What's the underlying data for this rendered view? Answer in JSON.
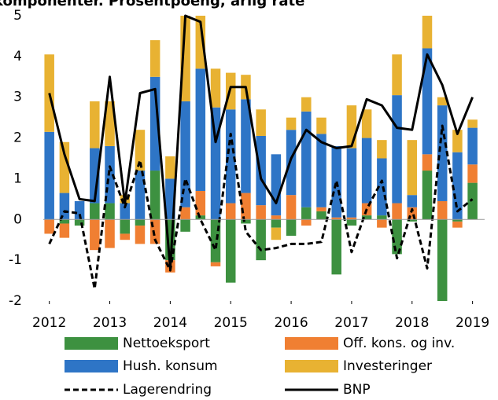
{
  "chart_data": {
    "type": "bar",
    "title": "komponenter. Prosentpoeng, årlig rate",
    "x": [
      2012,
      2012.25,
      2012.5,
      2012.75,
      2013,
      2013.25,
      2013.5,
      2013.75,
      2014,
      2014.25,
      2014.5,
      2014.75,
      2015,
      2015.25,
      2015.5,
      2015.75,
      2016,
      2016.25,
      2016.5,
      2016.75,
      2017,
      2017.25,
      2017.5,
      2017.75,
      2018,
      2018.25,
      2018.5,
      2018.75,
      2019
    ],
    "xlim": [
      2011.9,
      2019.2
    ],
    "xticks": [
      2012,
      2013,
      2014,
      2015,
      2016,
      2017,
      2018,
      2019
    ],
    "ylim": [
      -2,
      5
    ],
    "yticks": [
      -2,
      -1,
      0,
      1,
      2,
      3,
      4,
      5
    ],
    "series": [
      {
        "name": "Nettoeksport",
        "color": "#3d9140",
        "values": [
          0,
          -0.1,
          -0.15,
          0.4,
          0.4,
          -0.35,
          -0.15,
          1.2,
          -1.0,
          -0.3,
          0.1,
          -1.05,
          -1.55,
          -0.1,
          -1.0,
          -0.2,
          -0.4,
          0.3,
          0.2,
          -1.35,
          -0.15,
          0.1,
          0.1,
          -0.85,
          -0.05,
          1.2,
          -2.0,
          -0.05,
          0.9
        ]
      },
      {
        "name": "Off. kons. og inv.",
        "color": "#f07f32",
        "values": [
          -0.35,
          -0.35,
          0,
          -0.75,
          -0.7,
          -0.15,
          -0.45,
          -0.6,
          -0.3,
          0.3,
          0.6,
          -0.1,
          0.4,
          0.65,
          0.35,
          0.1,
          0.6,
          -0.15,
          0.1,
          0.05,
          0.05,
          0.3,
          -0.2,
          0.4,
          0.3,
          0.4,
          0.45,
          -0.15,
          0.45
        ]
      },
      {
        "name": "Hush. konsum",
        "color": "#2e75c6",
        "values": [
          2.15,
          0.65,
          0.45,
          1.35,
          1.4,
          0.4,
          1.2,
          2.3,
          1.0,
          2.6,
          3.0,
          2.75,
          2.3,
          2.3,
          1.7,
          1.5,
          1.6,
          2.35,
          1.8,
          1.75,
          1.7,
          1.6,
          1.4,
          2.65,
          0.3,
          2.6,
          2.35,
          1.65,
          0.9
        ]
      },
      {
        "name": "Investeringer",
        "color": "#e8b232",
        "values": [
          1.9,
          1.25,
          0,
          1.15,
          1.1,
          0.2,
          1.0,
          0.9,
          0.55,
          2.1,
          1.3,
          0.95,
          0.9,
          0.6,
          0.65,
          -0.3,
          0.3,
          0.35,
          0.4,
          0,
          1.05,
          0.7,
          0.45,
          1.0,
          1.35,
          0.8,
          0.2,
          0.55,
          0.2
        ]
      }
    ],
    "lines": [
      {
        "name": "Lagerendring",
        "color": "#000000",
        "dashed": true,
        "values": [
          -0.6,
          0.2,
          0.15,
          -1.7,
          1.3,
          0.3,
          1.45,
          -0.5,
          -1.25,
          1.0,
          0.0,
          -0.75,
          2.1,
          -0.3,
          -0.75,
          -0.7,
          -0.6,
          -0.6,
          -0.55,
          0.95,
          -0.8,
          0.25,
          0.95,
          -0.95,
          0.25,
          -1.2,
          2.3,
          0.2,
          0.5
        ]
      },
      {
        "name": "BNP",
        "color": "#000000",
        "dashed": false,
        "values": [
          3.1,
          1.6,
          0.5,
          0.45,
          3.5,
          0.4,
          3.1,
          3.2,
          -1.2,
          5,
          4.85,
          1.9,
          3.25,
          3.25,
          1.0,
          0.4,
          1.5,
          2.2,
          1.9,
          1.75,
          1.8,
          2.95,
          2.8,
          2.25,
          2.2,
          4.05,
          3.3,
          2.1,
          3.0
        ]
      }
    ]
  }
}
